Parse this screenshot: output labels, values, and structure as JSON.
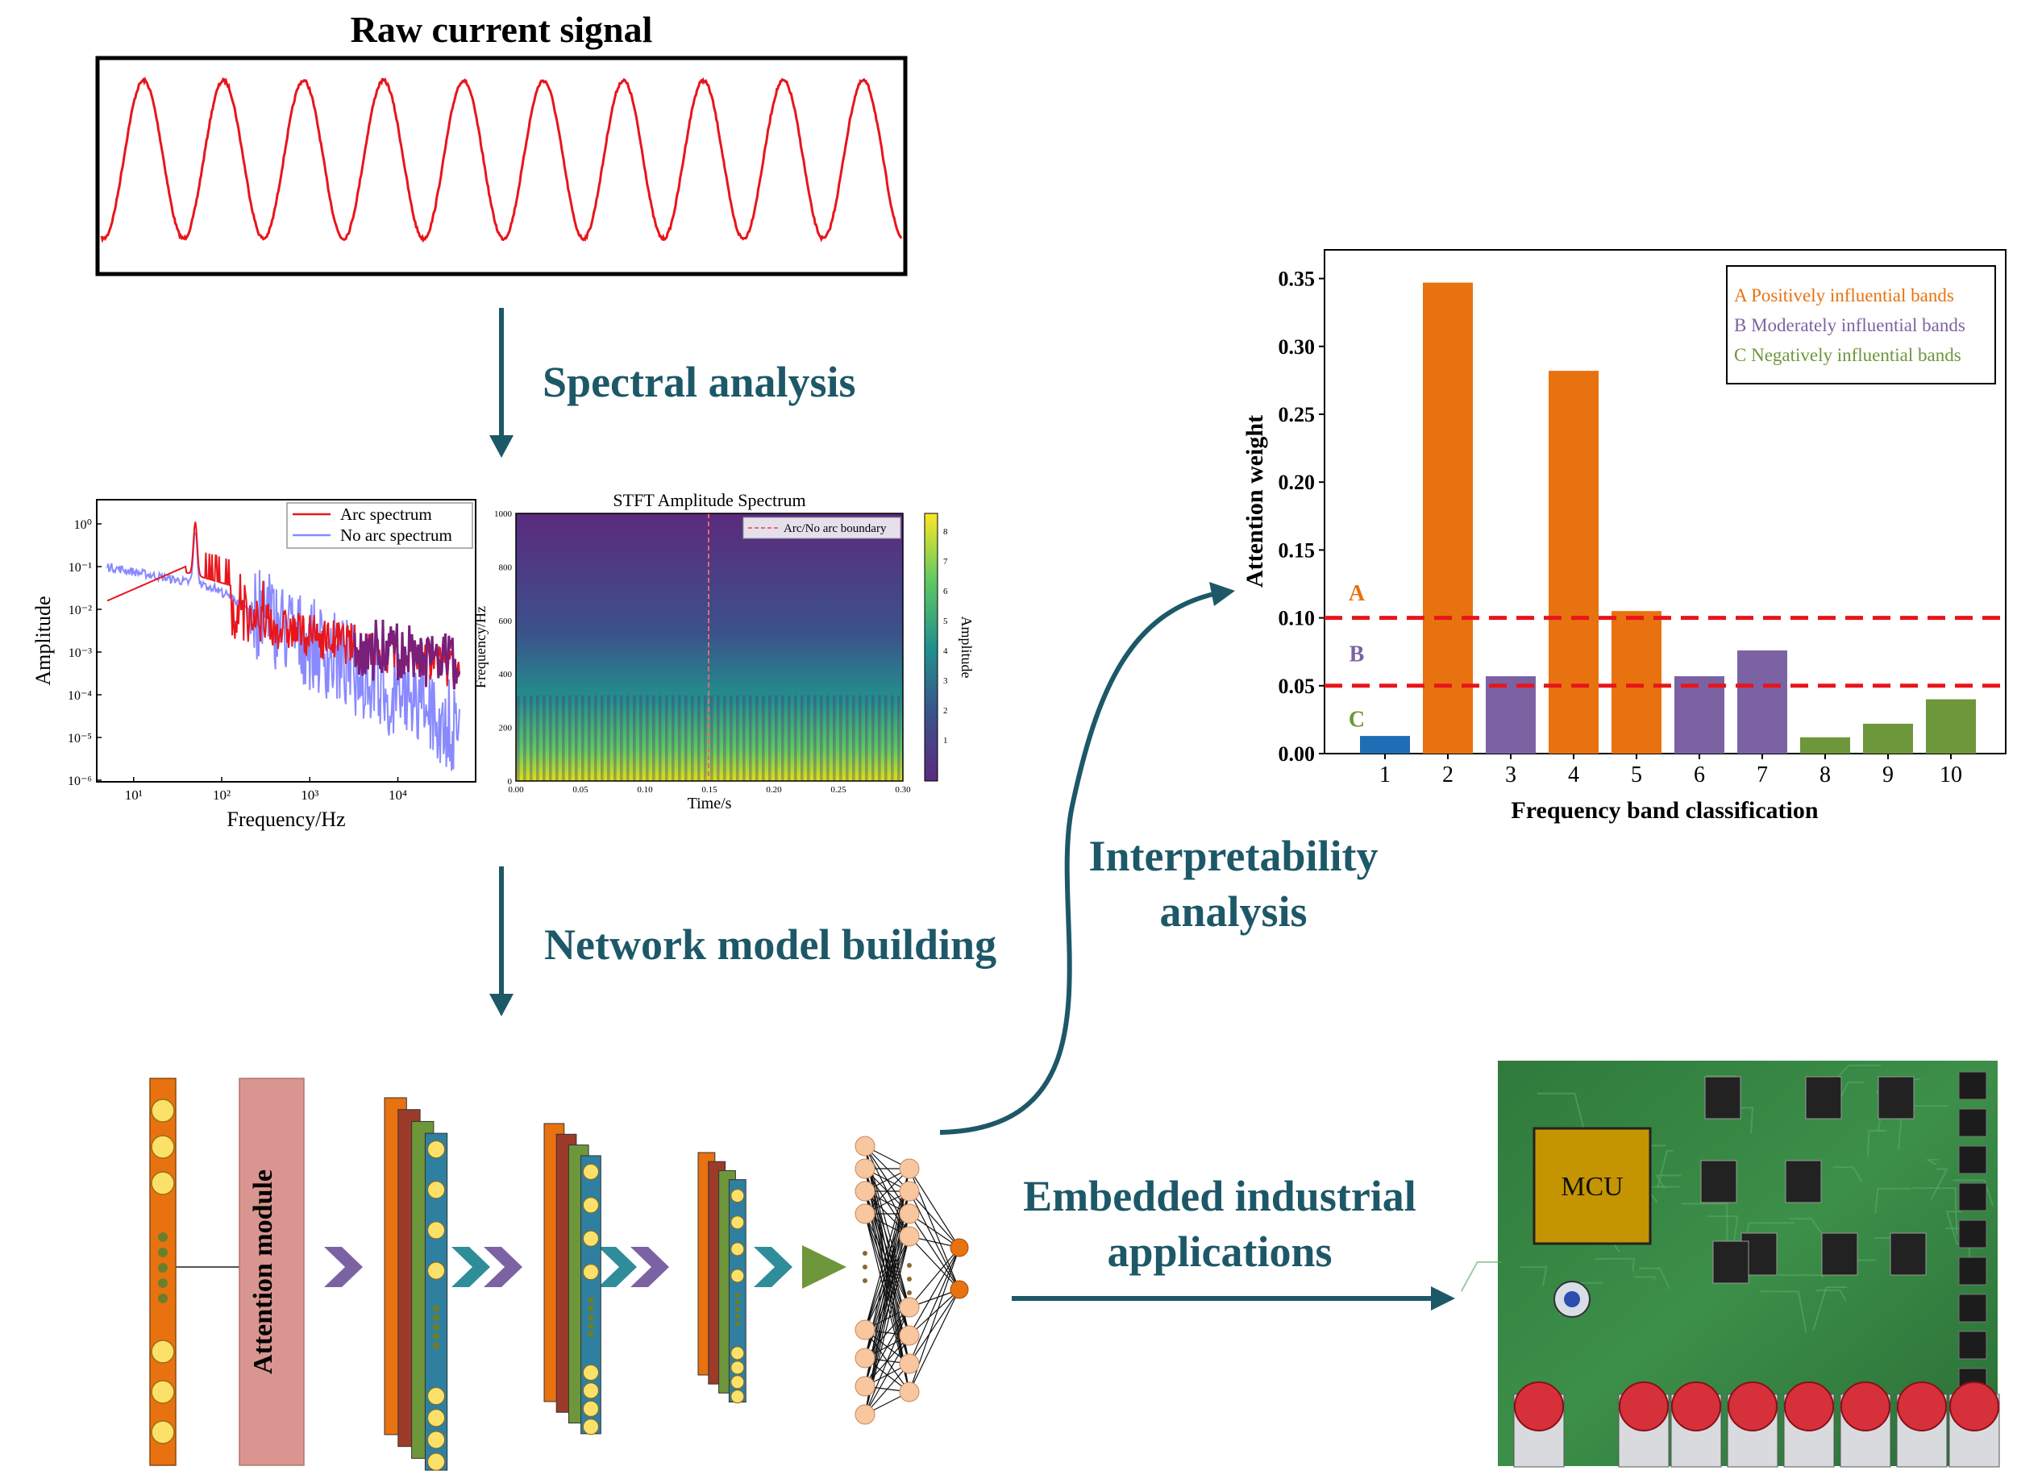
{
  "colors": {
    "teal": "#1d5868",
    "signal": "#e8151b",
    "orange": "#e8720f",
    "purple": "#7b63a3",
    "green": "#6e963a",
    "blue": "#1f6db5",
    "threshold": "#e8151b"
  },
  "raw_signal": {
    "title": "Raw current signal"
  },
  "steps": {
    "spectral": "Spectral analysis",
    "network": "Network model building",
    "interpret_line1": "Interpretability",
    "interpret_line2": "analysis",
    "embedded_line1": "Embedded industrial",
    "embedded_line2": "applications"
  },
  "spectrum_plot": {
    "xlabel": "Frequency/Hz",
    "ylabel": "Amplitude",
    "legend": [
      "Arc spectrum",
      "No arc spectrum"
    ],
    "xticks": [
      "10¹",
      "10²",
      "10³",
      "10⁴"
    ],
    "yticks": [
      "10⁰",
      "10⁻¹",
      "10⁻²",
      "10⁻³",
      "10⁻⁴",
      "10⁻⁵",
      "10⁻⁶"
    ]
  },
  "stft_plot": {
    "title": "STFT Amplitude Spectrum",
    "xlabel": "Time/s",
    "ylabel": "Frequency/Hz",
    "legend": "Arc/No arc boundary",
    "colorbar_label": "Amplitude",
    "xticks": [
      "0.00",
      "0.05",
      "0.10",
      "0.15",
      "0.20",
      "0.25",
      "0.30"
    ],
    "yticks": [
      "1000",
      "800",
      "600",
      "400",
      "200",
      "0"
    ],
    "colorbar_ticks": [
      "8",
      "7",
      "6",
      "5",
      "4",
      "3",
      "2",
      "1"
    ]
  },
  "network": {
    "attention_label": "Attention module"
  },
  "mcu": {
    "label": "MCU"
  },
  "chart_data": {
    "type": "bar",
    "title": "",
    "xlabel": "Frequency band classification",
    "ylabel": "Attention weight",
    "categories": [
      "1",
      "2",
      "3",
      "4",
      "5",
      "6",
      "7",
      "8",
      "9",
      "10"
    ],
    "values": [
      0.013,
      0.347,
      0.057,
      0.282,
      0.105,
      0.057,
      0.076,
      0.012,
      0.022,
      0.04
    ],
    "groups": [
      "neutral",
      "A",
      "B",
      "A",
      "A",
      "B",
      "B",
      "C",
      "C",
      "C"
    ],
    "ylim": [
      0,
      0.36
    ],
    "yticks": [
      "0.00",
      "0.05",
      "0.10",
      "0.15",
      "0.20",
      "0.25",
      "0.30",
      "0.35"
    ],
    "ytick_values": [
      0,
      0.05,
      0.1,
      0.15,
      0.2,
      0.25,
      0.3,
      0.35
    ],
    "thresholds": [
      0.1,
      0.05
    ],
    "band_labels": [
      "A",
      "B",
      "C"
    ],
    "legend": [
      "A Positively influential bands",
      "B Moderately influential bands",
      "C Negatively influential bands"
    ]
  }
}
